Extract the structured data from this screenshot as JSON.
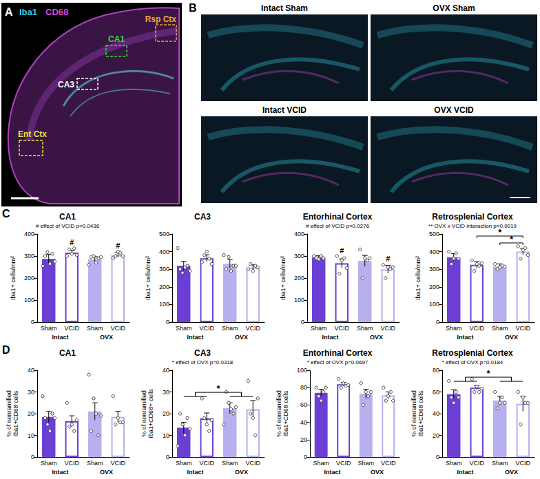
{
  "panels": [
    {
      "letter": "A",
      "channels": [
        {
          "label": "Iba1",
          "color": "#35d0e0"
        },
        {
          "label": "CD68",
          "color": "#e040d8"
        }
      ],
      "regions": [
        {
          "label": "Rsp Ctx",
          "color": "#f0a830"
        },
        {
          "label": "CA1",
          "color": "#40d040"
        },
        {
          "label": "CA3",
          "color": "#ffffff"
        },
        {
          "label": "Ent Ctx",
          "color": "#e8e040"
        }
      ]
    },
    {
      "letter": "B",
      "tiles": [
        "Intact Sham",
        "OVX Sham",
        "Intact VCID",
        "OVX VCID"
      ]
    }
  ],
  "chart_data": [
    {
      "panel": "C",
      "type": "bar",
      "title": "CA1",
      "annotation": "# effect of VCID p=0.0436",
      "ylabel": "Iba1+ cells/mm²",
      "categories": [
        "Sham",
        "VCID",
        "Sham",
        "VCID"
      ],
      "groups": [
        "Intact",
        "OVX"
      ],
      "values": [
        287,
        316,
        285,
        305
      ],
      "errors": [
        20,
        10,
        12,
        10
      ],
      "points": [
        [
          255,
          300,
          318,
          265,
          310,
          275
        ],
        [
          300,
          330,
          310,
          335,
          305
        ],
        [
          260,
          295,
          300,
          270,
          290,
          295
        ],
        [
          290,
          300,
          320,
          315,
          300
        ]
      ],
      "colors": [
        "#6b3fd4",
        "#6b3fd4",
        "#b7b0ee",
        "#b7b0ee"
      ],
      "bar_marks": [
        null,
        "#",
        null,
        "#"
      ],
      "ylim": [
        0,
        400
      ],
      "yticks": [
        0,
        100,
        200,
        300,
        400
      ],
      "grid": false
    },
    {
      "panel": "C",
      "type": "bar",
      "title": "CA3",
      "ylabel": "Iba1+ cells/mm²",
      "categories": [
        "Sham",
        "VCID",
        "Sham",
        "VCID"
      ],
      "groups": [
        "Intact",
        "OVX"
      ],
      "values": [
        320,
        362,
        330,
        310
      ],
      "errors": [
        25,
        20,
        25,
        15
      ],
      "points": [
        [
          420,
          300,
          280,
          310,
          320,
          290
        ],
        [
          340,
          380,
          400,
          360,
          330
        ],
        [
          380,
          300,
          370,
          290,
          320,
          320
        ],
        [
          300,
          330,
          290,
          320,
          310
        ]
      ],
      "colors": [
        "#6b3fd4",
        "#6b3fd4",
        "#b7b0ee",
        "#b7b0ee"
      ],
      "ylim": [
        0,
        500
      ],
      "yticks": [
        0,
        100,
        200,
        300,
        400,
        500
      ],
      "grid": false
    },
    {
      "panel": "C",
      "type": "bar",
      "title": "Entorhinal Cortex",
      "annotation": "# effect of VCID p=0.0276",
      "ylabel": "Iba1+ cells/mm²",
      "categories": [
        "Sham",
        "VCID",
        "Sham",
        "VCID"
      ],
      "groups": [
        "Intact",
        "OVX"
      ],
      "values": [
        293,
        267,
        278,
        240
      ],
      "errors": [
        8,
        20,
        25,
        18
      ],
      "points": [
        [
          300,
          290,
          285,
          300,
          290
        ],
        [
          300,
          220,
          280,
          290,
          245
        ],
        [
          330,
          200,
          290,
          280,
          290
        ],
        [
          260,
          200,
          250,
          240,
          250
        ]
      ],
      "colors": [
        "#6b3fd4",
        "#6b3fd4",
        "#b7b0ee",
        "#b7b0ee"
      ],
      "bar_marks": [
        null,
        "#",
        null,
        "#"
      ],
      "ylim": [
        0,
        400
      ],
      "yticks": [
        0,
        100,
        200,
        300,
        400
      ],
      "grid": false
    },
    {
      "panel": "C",
      "type": "bar",
      "title": "Retrosplenial Cortex",
      "annotation": "** OVX x VCID interaction p=0.0019",
      "ylabel": "Iba1+ cells/mm²",
      "categories": [
        "Sham",
        "VCID",
        "Sham",
        "VCID"
      ],
      "groups": [
        "Intact",
        "OVX"
      ],
      "values": [
        368,
        325,
        315,
        400
      ],
      "errors": [
        20,
        18,
        15,
        18
      ],
      "points": [
        [
          400,
          330,
          360,
          390,
          360
        ],
        [
          350,
          290,
          330,
          320,
          335
        ],
        [
          330,
          300,
          310,
          320,
          315
        ],
        [
          430,
          360,
          410,
          420,
          380
        ]
      ],
      "colors": [
        "#6b3fd4",
        "#6b3fd4",
        "#b7b0ee",
        "#b7b0ee"
      ],
      "brackets": [
        {
          "between": [
            2,
            3
          ],
          "label": "*"
        },
        {
          "between": [
            1,
            3
          ],
          "label": "*"
        }
      ],
      "ylim": [
        0,
        500
      ],
      "yticks": [
        0,
        100,
        200,
        300,
        400,
        500
      ],
      "grid": false
    },
    {
      "panel": "D",
      "type": "bar",
      "title": "CA1",
      "ylabel": "% of nonramified Iba1+CD68 cells",
      "categories": [
        "Sham",
        "VCID",
        "Sham",
        "VCID"
      ],
      "groups": [
        "Intact",
        "OVX"
      ],
      "values": [
        18.5,
        16.5,
        21,
        18.5
      ],
      "errors": [
        2.5,
        2.5,
        4,
        2.5
      ],
      "points": [
        [
          28,
          18,
          15,
          12,
          20,
          18
        ],
        [
          25,
          14,
          15,
          12,
          17
        ],
        [
          38,
          12,
          27,
          20,
          10,
          19
        ],
        [
          28,
          15,
          18,
          16,
          16
        ]
      ],
      "colors": [
        "#6b3fd4",
        "#6b3fd4",
        "#b7b0ee",
        "#b7b0ee"
      ],
      "ylim": [
        0,
        40
      ],
      "yticks": [
        0,
        10,
        20,
        30,
        40
      ],
      "grid": false
    },
    {
      "panel": "D",
      "type": "bar",
      "title": "CA3",
      "annotation": "* effect of OVX p=0.0318",
      "ylabel": "% of nonramified Iba1+CD68+ cells",
      "categories": [
        "Sham",
        "VCID",
        "Sham",
        "VCID"
      ],
      "groups": [
        "Intact",
        "OVX"
      ],
      "values": [
        13.5,
        17.8,
        22.5,
        22
      ],
      "errors": [
        2.5,
        2.5,
        2.5,
        4
      ],
      "points": [
        [
          5,
          20,
          15,
          10,
          18,
          13
        ],
        [
          27,
          18,
          15,
          12,
          17
        ],
        [
          15,
          30,
          25,
          22,
          20,
          23
        ],
        [
          35,
          20,
          18,
          10,
          27
        ]
      ],
      "colors": [
        "#6b3fd4",
        "#6b3fd4",
        "#b7b0ee",
        "#b7b0ee"
      ],
      "brackets": [
        {
          "between": [
            [
              0,
              1
            ],
            [
              2,
              3
            ]
          ],
          "label": "*"
        }
      ],
      "ylim": [
        0,
        40
      ],
      "yticks": [
        0,
        10,
        20,
        30,
        40
      ],
      "grid": false
    },
    {
      "panel": "D",
      "type": "bar",
      "title": "Entorhinal Cortex",
      "annotation": "* effect of OVX p=0.0697",
      "ylabel": "% of nonramified Iba1+CD68 cells",
      "categories": [
        "Sham",
        "VCID",
        "Sham",
        "VCID"
      ],
      "groups": [
        "Intact",
        "OVX"
      ],
      "values": [
        74,
        84,
        73,
        71
      ],
      "errors": [
        4,
        2,
        5,
        4
      ],
      "points": [
        [
          80,
          70,
          65,
          75,
          80
        ],
        [
          90,
          80,
          85,
          82,
          83
        ],
        [
          85,
          60,
          75,
          70,
          75
        ],
        [
          80,
          65,
          70,
          75,
          65
        ]
      ],
      "colors": [
        "#6b3fd4",
        "#6b3fd4",
        "#b7b0ee",
        "#b7b0ee"
      ],
      "ylim": [
        0,
        100
      ],
      "yticks": [
        0,
        20,
        40,
        60,
        80,
        100
      ],
      "grid": false
    },
    {
      "panel": "D",
      "type": "bar",
      "title": "Retrosplenial Cortex",
      "annotation": "* effect of OVX p=0.0184",
      "ylabel": "% of nonramified Iba1+CD68 cells",
      "categories": [
        "Sham",
        "VCID",
        "Sham",
        "VCID"
      ],
      "groups": [
        "Intact",
        "OVX"
      ],
      "values": [
        58,
        64,
        52,
        49
      ],
      "errors": [
        4,
        2,
        4,
        7
      ],
      "points": [
        [
          70,
          55,
          50,
          60,
          55
        ],
        [
          72,
          60,
          65,
          60,
          63
        ],
        [
          60,
          45,
          50,
          55,
          50
        ],
        [
          60,
          30,
          55,
          50,
          50
        ]
      ],
      "colors": [
        "#6b3fd4",
        "#6b3fd4",
        "#b7b0ee",
        "#b7b0ee"
      ],
      "brackets": [
        {
          "between": [
            [
              0,
              1
            ],
            [
              2,
              3
            ]
          ],
          "label": "*"
        }
      ],
      "ylim": [
        0,
        80
      ],
      "yticks": [
        0,
        20,
        40,
        60,
        80
      ],
      "grid": false
    }
  ]
}
